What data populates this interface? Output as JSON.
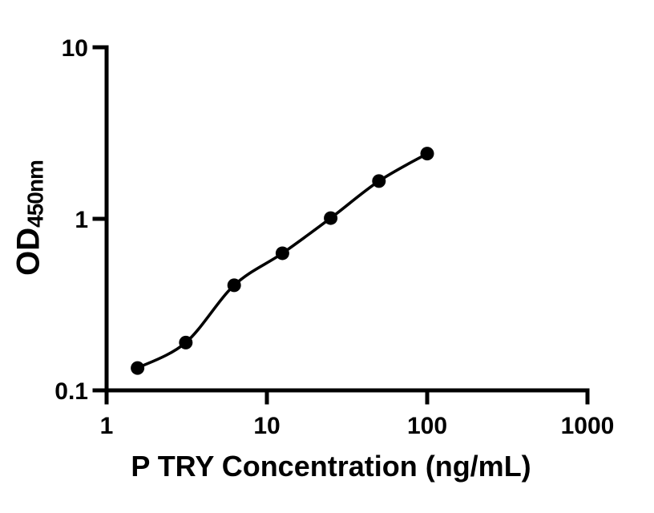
{
  "figure": {
    "background": "#ffffff",
    "text_color": "#000000",
    "xlabel": "P TRY Concentration (ng/mL)",
    "ylabel_main": "OD",
    "ylabel_sub": "450nm"
  },
  "chart_data": {
    "type": "scatter",
    "title": "",
    "xlabel": "P TRY Concentration (ng/mL)",
    "ylabel": "OD450nm",
    "x_scale": "log",
    "y_scale": "log",
    "xlim": [
      1,
      1000
    ],
    "ylim": [
      0.1,
      10
    ],
    "grid": false,
    "x": [
      1.56,
      3.12,
      6.25,
      12.5,
      25,
      50,
      100
    ],
    "y": [
      0.135,
      0.19,
      0.41,
      0.63,
      1.01,
      1.66,
      2.4
    ],
    "fit_line": true,
    "x_ticks": {
      "values": [
        1,
        10,
        100,
        1000
      ],
      "labels": [
        "1",
        "10",
        "100",
        "1000"
      ]
    },
    "y_ticks": {
      "values": [
        0.1,
        1,
        10
      ],
      "labels": [
        "0.1",
        "1",
        "10"
      ]
    },
    "marker_color": "#000000",
    "line_color": "#000000",
    "axis_color": "#000000"
  }
}
